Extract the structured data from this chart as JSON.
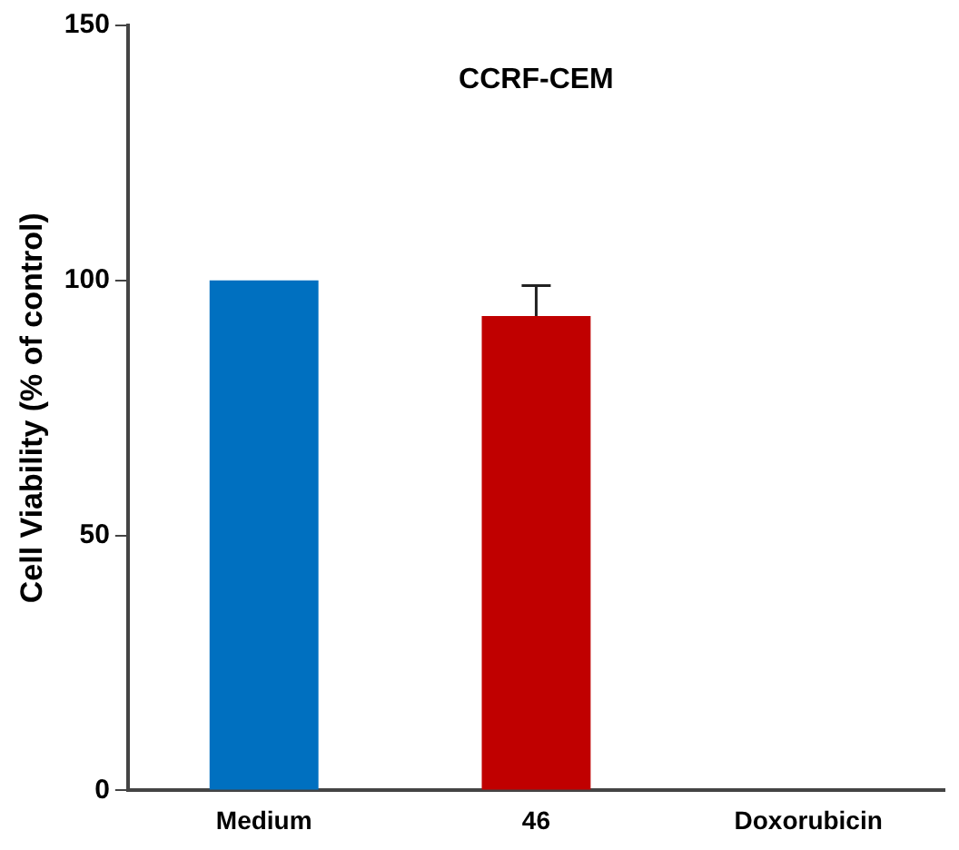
{
  "chart_data": {
    "type": "bar",
    "title": "CCRF-CEM",
    "ylabel": "Cell Viability (% of control)",
    "categories": [
      "Medium",
      "46",
      "Doxorubicin"
    ],
    "values": [
      100,
      93,
      0
    ],
    "colors": [
      "#0070c0",
      "#c00000",
      "#808080"
    ],
    "errors": [
      null,
      6,
      null
    ],
    "ylim": [
      0,
      150
    ],
    "yticks": [
      0,
      50,
      100,
      150
    ],
    "grid": false,
    "legend": false
  }
}
